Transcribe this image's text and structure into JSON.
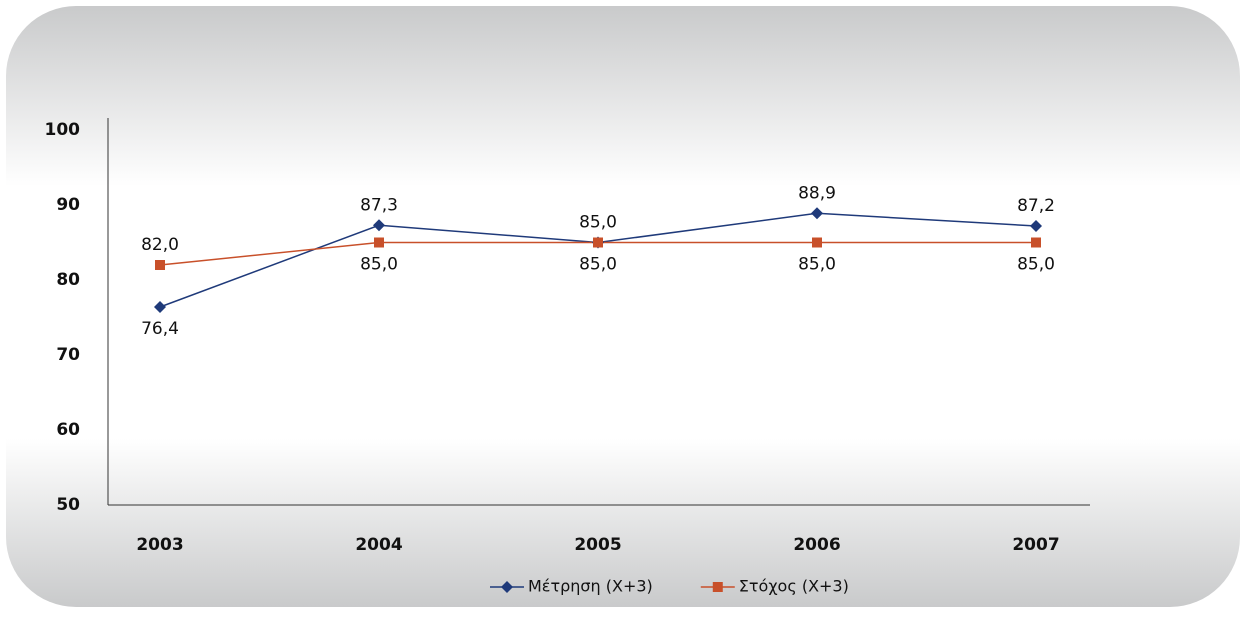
{
  "chart_data": {
    "type": "line",
    "categories": [
      "2003",
      "2004",
      "2005",
      "2006",
      "2007"
    ],
    "series": [
      {
        "name": "Μέτρηση (Χ+3)",
        "color": "#1f3a7a",
        "marker": "diamond",
        "values": [
          76.4,
          87.3,
          85.0,
          88.9,
          87.2
        ],
        "value_labels": [
          "76,4",
          "87,3",
          "85,0",
          "88,9",
          "87,2"
        ]
      },
      {
        "name": "Στόχος (Χ+3)",
        "color": "#c8502a",
        "marker": "square",
        "values": [
          82.0,
          85.0,
          85.0,
          85.0,
          85.0
        ],
        "value_labels": [
          "82,0",
          "85,0",
          "85,0",
          "85,0",
          "85,0"
        ]
      }
    ],
    "ylim": [
      50,
      100
    ],
    "yticks": [
      50,
      60,
      70,
      80,
      90,
      100
    ],
    "grid": false,
    "legend": "bottom"
  }
}
